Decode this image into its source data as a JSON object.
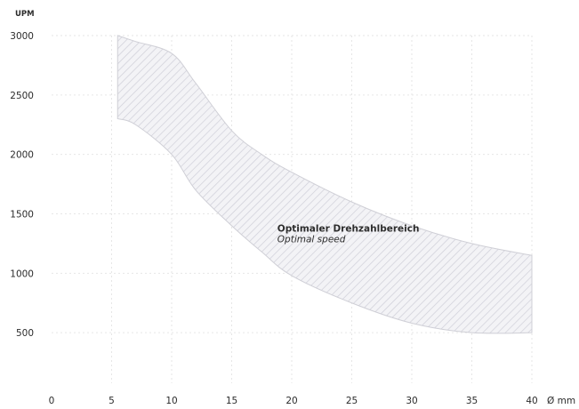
{
  "chart_data": {
    "type": "area",
    "title": "",
    "ylabel": "UPM",
    "xlabel": "Ø mm",
    "xlim": [
      0,
      40
    ],
    "ylim": [
      0,
      3000
    ],
    "x_ticks": [
      "0",
      "5",
      "10",
      "15",
      "20",
      "25",
      "30",
      "35",
      "40"
    ],
    "y_ticks": [
      "500",
      "1000",
      "1500",
      "2000",
      "2500",
      "3000"
    ],
    "grid": true,
    "series": [
      {
        "name": "Optimaler Drehzahlbereich",
        "upper": {
          "x": [
            5.5,
            7,
            10,
            12,
            15,
            17.5,
            20,
            25,
            30,
            35,
            40
          ],
          "y": [
            3000,
            2950,
            2850,
            2600,
            2200,
            2000,
            1850,
            1600,
            1400,
            1250,
            1150
          ]
        },
        "lower": {
          "x": [
            5.5,
            7,
            10,
            12,
            15,
            17.5,
            20,
            25,
            30,
            35,
            40
          ],
          "y": [
            2300,
            2250,
            2000,
            1700,
            1400,
            1180,
            980,
            750,
            580,
            500,
            500
          ]
        }
      }
    ],
    "annotations": [
      {
        "text": "Optimaler Drehzahlbereich",
        "x": 18.8,
        "y": 1350,
        "style": "bold"
      },
      {
        "text": "Optimal speed",
        "x": 18.8,
        "y": 1260,
        "style": "italic"
      }
    ]
  }
}
